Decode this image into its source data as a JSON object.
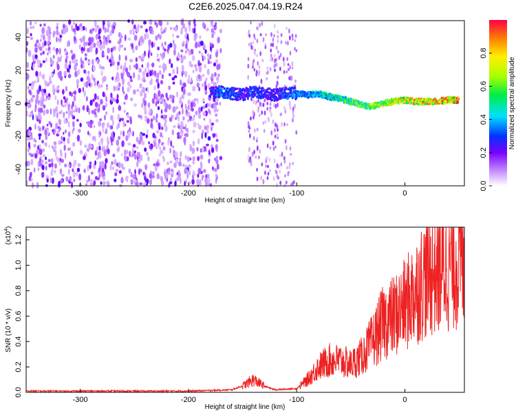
{
  "title": "C2E6.2025.047.04.19.R24",
  "chart_data": [
    {
      "type": "heatmap",
      "xlabel": "Height of straight line (km)",
      "ylabel": "Frequency (Hz)",
      "xlim": [
        -350,
        55
      ],
      "ylim": [
        -50,
        50
      ],
      "xticks": [
        "-300",
        "-200",
        "-100",
        "0"
      ],
      "yticks": [
        "-40",
        "-20",
        "0",
        "20",
        "40"
      ],
      "colorbar": {
        "label": "Normalized spectral amplitude",
        "range": [
          0,
          1
        ],
        "ticks": [
          "0.0",
          "0.2",
          "0.4",
          "0.6",
          "0.8"
        ]
      },
      "track": {
        "x": [
          -180,
          -170,
          -160,
          -150,
          -140,
          -130,
          -120,
          -110,
          -100,
          -90,
          -80,
          -70,
          -60,
          -50,
          -40,
          -30,
          -20,
          -10,
          0,
          10,
          20,
          30,
          40,
          50
        ],
        "freq": [
          6,
          7,
          6,
          5,
          7,
          6,
          5,
          6,
          6,
          5,
          6,
          4,
          3,
          1,
          -1,
          -2,
          0,
          1,
          2,
          1,
          1,
          1,
          2,
          2
        ],
        "amplitude": [
          0.3,
          0.4,
          0.35,
          0.3,
          0.35,
          0.3,
          0.3,
          0.35,
          0.4,
          0.45,
          0.5,
          0.55,
          0.6,
          0.65,
          0.7,
          0.75,
          0.8,
          0.85,
          0.9,
          0.9,
          0.9,
          0.95,
          0.95,
          1.0
        ]
      }
    },
    {
      "type": "line",
      "xlabel": "Height of straight line (km)",
      "ylabel": "SNR (10 * v/v)",
      "y_multiplier": "(x10",
      "y_multiplier_exp": "4",
      "xlim": [
        -350,
        55
      ],
      "ylim": [
        0,
        1.3
      ],
      "xticks": [
        "-300",
        "-200",
        "-100",
        "0"
      ],
      "yticks": [
        "0.0",
        "0.2",
        "0.4",
        "0.6",
        "0.8",
        "1.0",
        "1.2"
      ],
      "series": [
        {
          "color": "#ee2222",
          "x": [
            -350,
            -300,
            -250,
            -200,
            -160,
            -150,
            -140,
            -130,
            -120,
            -100,
            -90,
            -80,
            -70,
            -60,
            -50,
            -40,
            -30,
            -20,
            -10,
            0,
            10,
            20,
            30,
            40,
            50,
            55
          ],
          "values": [
            0.01,
            0.01,
            0.01,
            0.01,
            0.02,
            0.05,
            0.1,
            0.05,
            0.02,
            0.03,
            0.1,
            0.2,
            0.25,
            0.25,
            0.22,
            0.28,
            0.4,
            0.55,
            0.6,
            0.68,
            0.8,
            0.92,
            0.98,
            1.02,
            1.05,
            1.05
          ]
        }
      ]
    }
  ]
}
